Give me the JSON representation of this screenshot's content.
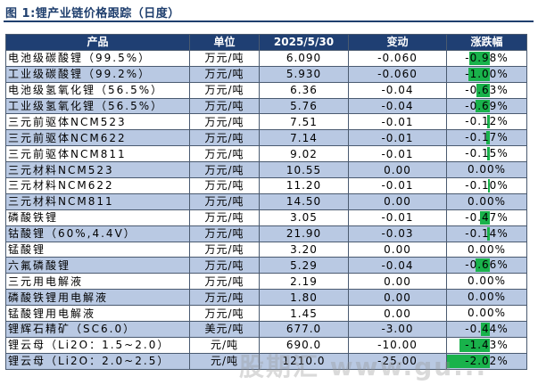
{
  "figure_title": "图 1:锂产业链价格跟踪（日度）",
  "headers": [
    "产品",
    "单位",
    "2025/5/30",
    "变动",
    "涨跌幅"
  ],
  "rows": [
    {
      "name": "电池级碳酸锂（99.5%）",
      "unit": "万元/吨",
      "price": "6.090",
      "change": "-0.060",
      "pct": "-0.98%",
      "pct_value": -0.98
    },
    {
      "name": "工业级碳酸锂（99.2%）",
      "unit": "万元/吨",
      "price": "5.930",
      "change": "-0.060",
      "pct": "-1.00%",
      "pct_value": -1.0
    },
    {
      "name": "电池级氢氧化锂（56.5%）",
      "unit": "万元/吨",
      "price": "6.36",
      "change": "-0.04",
      "pct": "-0.63%",
      "pct_value": -0.63
    },
    {
      "name": "工业级氢氧化锂（56.5%）",
      "unit": "万元/吨",
      "price": "5.76",
      "change": "-0.04",
      "pct": "-0.69%",
      "pct_value": -0.69
    },
    {
      "name": "三元前驱体NCM523",
      "unit": "万元/吨",
      "price": "7.51",
      "change": "-0.01",
      "pct": "-0.12%",
      "pct_value": -0.12
    },
    {
      "name": "三元前驱体NCM622",
      "unit": "万元/吨",
      "price": "7.14",
      "change": "-0.01",
      "pct": "-0.17%",
      "pct_value": -0.17
    },
    {
      "name": "三元前驱体NCM811",
      "unit": "万元/吨",
      "price": "9.02",
      "change": "-0.01",
      "pct": "-0.15%",
      "pct_value": -0.15
    },
    {
      "name": "三元材料NCM523",
      "unit": "万元/吨",
      "price": "10.55",
      "change": "0.00",
      "pct": "0.00%",
      "pct_value": 0.0
    },
    {
      "name": "三元材料NCM622",
      "unit": "万元/吨",
      "price": "11.20",
      "change": "-0.01",
      "pct": "-0.10%",
      "pct_value": -0.1
    },
    {
      "name": "三元材料NCM811",
      "unit": "万元/吨",
      "price": "14.50",
      "change": "0.00",
      "pct": "0.00%",
      "pct_value": 0.0
    },
    {
      "name": "磷酸铁锂",
      "unit": "万元/吨",
      "price": "3.05",
      "change": "-0.01",
      "pct": "-0.47%",
      "pct_value": -0.47
    },
    {
      "name": "钴酸锂（60%,4.4V）",
      "unit": "万元/吨",
      "price": "21.90",
      "change": "-0.03",
      "pct": "-0.14%",
      "pct_value": -0.14
    },
    {
      "name": "锰酸锂",
      "unit": "万元/吨",
      "price": "3.20",
      "change": "0.00",
      "pct": "0.00%",
      "pct_value": 0.0
    },
    {
      "name": "六氟磷酸锂",
      "unit": "万元/吨",
      "price": "5.29",
      "change": "-0.04",
      "pct": "-0.66%",
      "pct_value": -0.66
    },
    {
      "name": "三元用电解液",
      "unit": "万元/吨",
      "price": "2.19",
      "change": "0.00",
      "pct": "0.00%",
      "pct_value": 0.0
    },
    {
      "name": "磷酸铁锂用电解液",
      "unit": "万元/吨",
      "price": "1.80",
      "change": "0.00",
      "pct": "0.00%",
      "pct_value": 0.0
    },
    {
      "name": "锰酸锂用电解液",
      "unit": "万元/吨",
      "price": "1.45",
      "change": "0.00",
      "pct": "0.00%",
      "pct_value": 0.0
    },
    {
      "name": "锂辉石精矿（SC6.0）",
      "unit": "美元/吨",
      "price": "677.0",
      "change": "-3.00",
      "pct": "-0.44%",
      "pct_value": -0.44
    },
    {
      "name": "锂云母（Li2O：1.5~2.0）",
      "unit": "元/吨",
      "price": "690.0",
      "change": "-10.00",
      "pct": "-1.43%",
      "pct_value": -1.43
    },
    {
      "name": "锂云母（Li2O：2.0~2.5）",
      "unit": "元/吨",
      "price": "1210.0",
      "change": "-25.00",
      "pct": "-2.02%",
      "pct_value": -2.02
    }
  ],
  "colors": {
    "header_bg": "#1f3f73",
    "alt_row": "#b9c9e3",
    "bar": "#19b24b"
  },
  "watermark": "股期汇 www.gu..."
}
